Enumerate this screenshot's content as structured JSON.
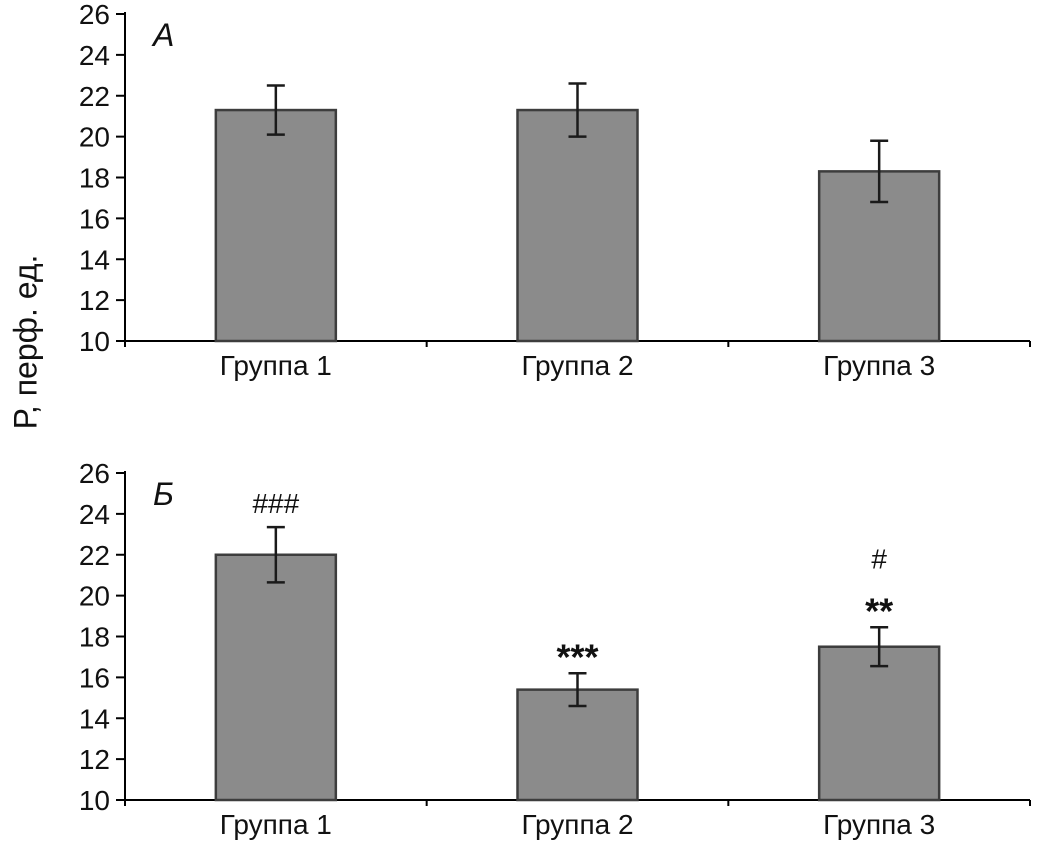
{
  "ylabel": "Р, перф. ед.",
  "colors": {
    "bar_fill": "#8b8b8b",
    "bar_stroke": "#3d3d3d",
    "axis": "#000000",
    "text": "#111111",
    "error_bar": "#1a1a1a"
  },
  "chart_data": [
    {
      "type": "bar",
      "panel_label": "А",
      "categories": [
        "Группа 1",
        "Группа 2",
        "Группа 3"
      ],
      "values": [
        21.3,
        21.3,
        18.3
      ],
      "errors": [
        1.2,
        1.3,
        1.5
      ],
      "annotations": [
        [],
        [],
        []
      ],
      "ylim": [
        10,
        26
      ],
      "ytick_step": 2,
      "grid": false,
      "legend": "none"
    },
    {
      "type": "bar",
      "panel_label": "Б",
      "categories": [
        "Группа 1",
        "Группа 2",
        "Группа 3"
      ],
      "values": [
        22.0,
        15.4,
        17.5
      ],
      "errors": [
        1.35,
        0.8,
        0.95
      ],
      "annotations": [
        [
          "###"
        ],
        [
          "***"
        ],
        [
          "#",
          "**"
        ]
      ],
      "ylim": [
        10,
        26
      ],
      "ytick_step": 2,
      "grid": false,
      "legend": "none"
    }
  ]
}
